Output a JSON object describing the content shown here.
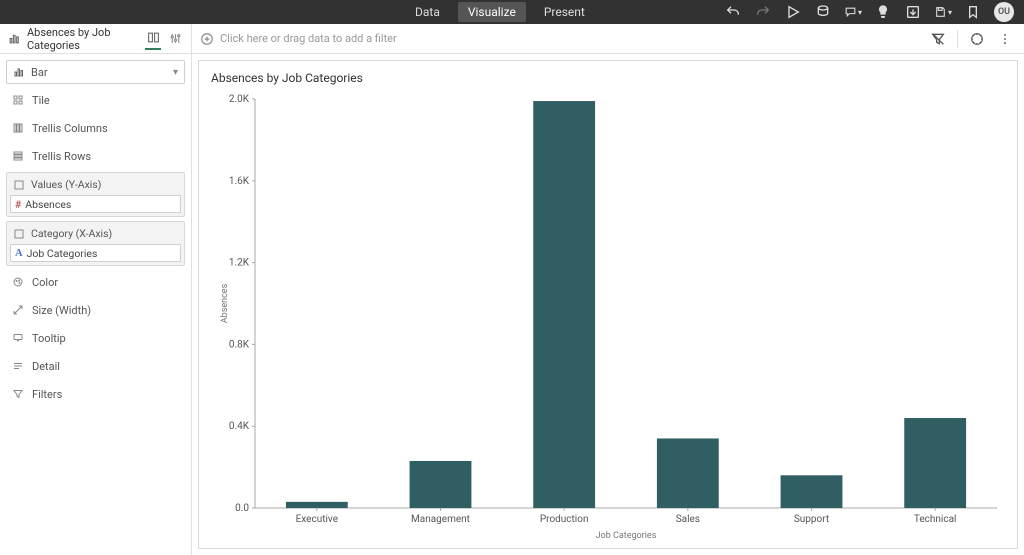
{
  "topbar": {
    "tabs": {
      "data": "Data",
      "visualize": "Visualize",
      "present": "Present",
      "active": "visualize"
    },
    "avatar_initials": "OU"
  },
  "subheader": {
    "project_name": "Absences by Job Categories",
    "filter_placeholder": "Click here or drag data to add a filter"
  },
  "sidebar": {
    "viz_type": "Bar",
    "items": {
      "tile": "Tile",
      "trellis_cols": "Trellis Columns",
      "trellis_rows": "Trellis Rows",
      "values_head": "Values (Y-Axis)",
      "values_pill": "Absences",
      "category_head": "Category (X-Axis)",
      "category_pill": "Job Categories",
      "color": "Color",
      "size": "Size (Width)",
      "tooltip": "Tooltip",
      "detail": "Detail",
      "filters": "Filters"
    }
  },
  "chart": {
    "title": "Absences by Job Categories",
    "type": "bar",
    "y_label": "Absences",
    "x_label": "Job Categories",
    "categories": [
      "Executive",
      "Management",
      "Production",
      "Sales",
      "Support",
      "Technical"
    ],
    "values": [
      30,
      230,
      1990,
      340,
      160,
      440
    ],
    "bar_color": "#2f5f63",
    "grid_color": "#eeeeee",
    "axis_color": "#aaaaaa",
    "background_color": "#ffffff",
    "ylim": [
      0,
      2000
    ],
    "ytick_step": 400,
    "ytick_labels": [
      "0.0",
      "0.4K",
      "0.8K",
      "1.2K",
      "1.6K",
      "2.0K"
    ],
    "bar_width_ratio": 0.5,
    "title_fontsize": 12,
    "tick_fontsize": 10,
    "label_fontsize": 9
  },
  "colors": {
    "topbar_bg": "#323232",
    "accent": "#2e7d5b"
  }
}
